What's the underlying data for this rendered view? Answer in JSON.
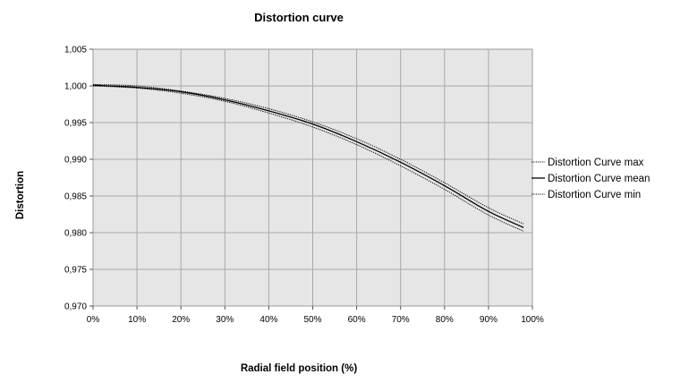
{
  "chart_data": {
    "type": "line",
    "title": "Distortion curve",
    "xlabel": "Radial field position (%)",
    "ylabel": "Distortion",
    "xlim": [
      0,
      100
    ],
    "ylim": [
      0.97,
      1.005
    ],
    "x_ticks": [
      0,
      10,
      20,
      30,
      40,
      50,
      60,
      70,
      80,
      90,
      100
    ],
    "x_tick_labels": [
      "0%",
      "10%",
      "20%",
      "30%",
      "40%",
      "50%",
      "60%",
      "70%",
      "80%",
      "90%",
      "100%"
    ],
    "y_ticks": [
      0.97,
      0.975,
      0.98,
      0.985,
      0.99,
      0.995,
      1.0,
      1.005
    ],
    "y_tick_labels": [
      "0,970",
      "0,975",
      "0,980",
      "0,985",
      "0,990",
      "0,995",
      "1,000",
      "1,005"
    ],
    "grid": true,
    "plot_background": "#e6e6e6",
    "legend_position": "right",
    "x": [
      0,
      10,
      20,
      30,
      40,
      50,
      60,
      70,
      80,
      90,
      98
    ],
    "series": [
      {
        "name": "Distortion Curve max",
        "style": "dotted",
        "color": "#000000",
        "values": [
          1.0002,
          1.0,
          0.9993,
          0.9983,
          0.9969,
          0.9951,
          0.9928,
          0.99,
          0.9868,
          0.9834,
          0.9812
        ]
      },
      {
        "name": "Distortion Curve mean",
        "style": "solid",
        "color": "#000000",
        "values": [
          1.0001,
          0.9998,
          0.9992,
          0.9981,
          0.9966,
          0.9948,
          0.9924,
          0.9896,
          0.9864,
          0.9829,
          0.9807
        ]
      },
      {
        "name": "Distortion Curve min",
        "style": "dotted",
        "color": "#000000",
        "values": [
          1.0,
          0.9997,
          0.999,
          0.9979,
          0.9963,
          0.9944,
          0.992,
          0.9891,
          0.9859,
          0.9824,
          0.9802
        ]
      }
    ]
  }
}
